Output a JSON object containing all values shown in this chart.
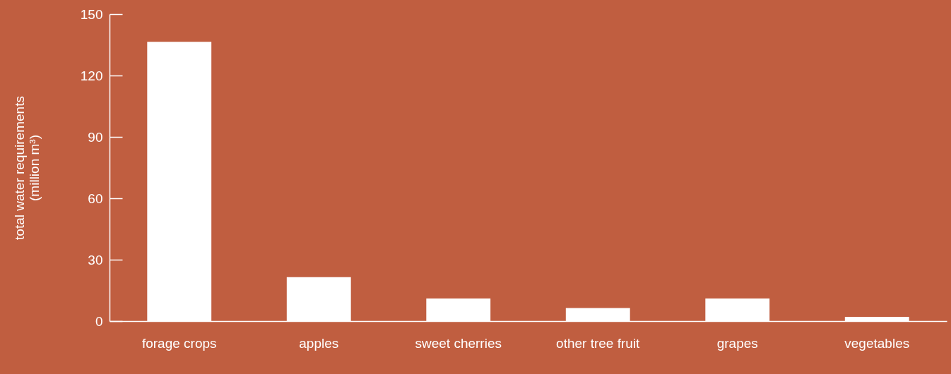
{
  "chart_data": {
    "type": "bar",
    "ylabel": "total water requirements (million m³)",
    "categories": [
      "forage crops",
      "apples",
      "sweet cherries",
      "other tree fruit",
      "grapes",
      "vegetables"
    ],
    "values": [
      136.5,
      21.5,
      11,
      6.4,
      11,
      2.1
    ],
    "color": "#ffffff",
    "ylim": [
      0,
      150
    ],
    "yticks": [
      0,
      30,
      60,
      90,
      120,
      150
    ],
    "grid": false
  }
}
